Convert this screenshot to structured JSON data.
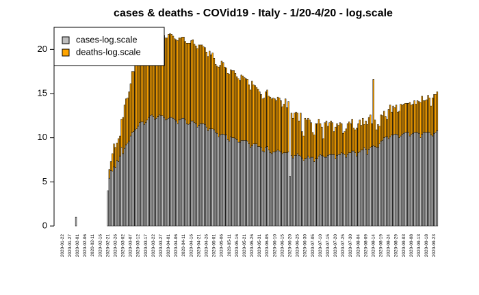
{
  "chart_data": {
    "type": "stacked-bar",
    "title": "cases & deaths - COVid19 - Italy - 1/20-4/20 - log.scale",
    "categories": [
      "2020-01-22",
      null,
      null,
      null,
      null,
      "2020-01-27",
      null,
      null,
      null,
      null,
      "2020-02-01",
      null,
      null,
      null,
      null,
      "2020-02-06",
      null,
      null,
      null,
      null,
      "2020-02-11",
      null,
      null,
      null,
      null,
      "2020-02-16",
      null,
      null,
      null,
      null,
      "2020-02-21",
      null,
      null,
      null,
      null,
      "2020-02-26",
      null,
      null,
      null,
      null,
      "2020-03-02",
      null,
      null,
      null,
      null,
      "2020-03-07",
      null,
      null,
      null,
      null,
      "2020-03-12",
      null,
      null,
      null,
      null,
      "2020-03-17",
      null,
      null,
      null,
      null,
      "2020-03-22",
      null,
      null,
      null,
      null,
      "2020-03-27",
      null,
      null,
      null,
      null,
      "2020-04-01",
      null,
      null,
      null,
      null,
      "2020-04-06",
      null,
      null,
      null,
      null,
      "2020-04-11",
      null,
      null,
      null,
      null,
      "2020-04-16",
      null,
      null,
      null,
      null,
      "2020-04-21",
      null,
      null,
      null,
      null,
      "2020-04-26",
      null,
      null,
      null,
      null,
      "2020-05-01",
      null,
      null,
      null,
      null,
      "2020-05-06",
      null,
      null,
      null,
      null,
      "2020-05-11",
      null,
      null,
      null,
      null,
      "2020-05-16",
      null,
      null,
      null,
      null,
      "2020-05-21",
      null,
      null,
      null,
      null,
      "2020-05-26",
      null,
      null,
      null,
      null,
      "2020-05-31",
      null,
      null,
      null,
      null,
      "2020-06-05",
      null,
      null,
      null,
      null,
      "2020-06-10",
      null,
      null,
      null,
      null,
      "2020-06-15",
      null,
      null,
      null,
      null,
      "2020-06-20",
      null,
      null,
      null,
      null,
      "2020-06-25",
      null,
      null,
      null,
      null,
      "2020-06-30",
      null,
      null,
      null,
      null,
      "2020-07-05",
      null,
      null,
      null,
      null,
      "2020-07-10",
      null,
      null,
      null,
      null,
      "2020-07-15",
      null,
      null,
      null,
      null,
      "2020-07-20",
      null,
      null,
      null,
      null,
      "2020-07-25",
      null,
      null,
      null,
      null,
      "2020-07-30",
      null,
      null,
      null,
      null,
      "2020-08-04",
      null,
      null,
      null,
      null,
      "2020-08-09",
      null,
      null,
      null,
      null,
      "2020-08-14",
      null,
      null,
      null,
      null,
      "2020-08-19",
      null,
      null,
      null,
      null,
      "2020-08-24",
      null,
      null,
      null,
      null,
      "2020-08-29",
      null,
      null,
      null,
      null,
      "2020-09-03",
      null,
      null,
      null,
      null,
      "2020-09-08",
      null,
      null,
      null,
      null,
      "2020-09-13",
      null,
      null,
      null,
      null,
      "2020-09-18",
      null,
      null,
      null,
      null,
      "2020-09-23",
      null,
      null
    ],
    "series": [
      {
        "name": "cases-log.scale",
        "color": "#bebebe",
        "values": [
          0,
          0,
          0,
          0,
          0,
          0,
          0,
          0,
          0,
          1,
          0,
          0,
          0,
          0,
          0,
          0,
          0,
          0,
          0,
          0,
          0,
          0,
          0,
          0,
          0,
          0,
          0,
          0,
          0,
          0,
          4.0,
          5.4,
          6.3,
          6.2,
          6.7,
          6.6,
          7.4,
          7.3,
          7.9,
          8.9,
          8.2,
          8.8,
          9.2,
          9.4,
          9.6,
          10.2,
          10.6,
          10.7,
          10.9,
          11.0,
          11.3,
          11.7,
          11.8,
          11.8,
          11.5,
          11.7,
          12.0,
          12.3,
          12.5,
          12.6,
          12.4,
          12.1,
          12.2,
          12.4,
          12.6,
          12.5,
          12.5,
          12.3,
          12.0,
          12.1,
          12.2,
          12.3,
          12.3,
          12.2,
          12.1,
          11.9,
          11.6,
          12.0,
          12.1,
          12.2,
          12.2,
          12.0,
          11.6,
          11.5,
          11.6,
          11.9,
          11.9,
          11.7,
          11.6,
          11.2,
          11.4,
          11.6,
          11.6,
          11.6,
          11.5,
          11.2,
          10.8,
          11.0,
          11.0,
          11.0,
          10.9,
          10.6,
          10.5,
          10.1,
          10.3,
          10.4,
          10.4,
          10.3,
          10.3,
          9.8,
          9.6,
          10.1,
          10.0,
          10.0,
          9.9,
          9.8,
          9.5,
          9.5,
          9.7,
          9.7,
          9.7,
          9.7,
          9.6,
          9.3,
          8.9,
          9.1,
          9.3,
          9.3,
          9.3,
          9.0,
          9.0,
          8.9,
          8.5,
          8.4,
          8.9,
          9.0,
          8.6,
          8.3,
          8.2,
          8.4,
          8.4,
          8.5,
          8.6,
          8.5,
          8.4,
          8.2,
          8.3,
          8.3,
          8.3,
          8.4,
          5.6,
          8.0,
          7.7,
          8.0,
          8.0,
          8.2,
          8.0,
          7.9,
          7.7,
          7.4,
          7.6,
          7.7,
          7.9,
          7.7,
          7.8,
          7.8,
          7.3,
          7.6,
          7.6,
          7.9,
          8.1,
          8.0,
          7.9,
          7.8,
          7.8,
          8.0,
          8.1,
          8.1,
          8.1,
          8.1,
          7.6,
          8.0,
          8.1,
          8.1,
          8.3,
          8.2,
          8.1,
          7.8,
          8.1,
          8.3,
          8.3,
          8.5,
          8.5,
          8.3,
          7.9,
          8.3,
          8.4,
          8.6,
          8.6,
          8.9,
          8.7,
          8.1,
          8.7,
          8.9,
          9.0,
          9.1,
          9.0,
          8.9,
          8.9,
          9.3,
          9.6,
          9.7,
          10.0,
          10.1,
          10.1,
          9.9,
          10.1,
          10.3,
          10.3,
          10.4,
          10.4,
          10.3,
          10.0,
          10.2,
          10.4,
          10.5,
          10.6,
          10.6,
          10.6,
          10.2,
          10.4,
          10.5,
          10.6,
          10.6,
          10.6,
          10.5,
          10.0,
          10.4,
          10.6,
          10.6,
          10.6,
          10.6,
          10.6,
          10.3,
          10.2,
          10.5,
          10.6,
          10.8
        ]
      },
      {
        "name": "deaths-log.scale",
        "color": "#ffa500",
        "values": [
          0,
          0,
          0,
          0,
          0,
          0,
          0,
          0,
          0,
          0,
          0,
          0,
          0,
          0,
          0,
          0,
          0,
          0,
          0,
          0,
          0,
          0,
          0,
          0,
          0,
          0,
          0,
          0,
          0,
          0,
          0,
          1,
          1,
          2,
          2.6,
          2.3,
          2,
          2.6,
          2.3,
          3.2,
          4.1,
          4.9,
          5.2,
          5.1,
          5.6,
          5.9,
          6.9,
          6.8,
          7.4,
          7.6,
          7.9,
          7.8,
          8.2,
          8.3,
          8.5,
          8.7,
          8.9,
          9.1,
          9.3,
          9.6,
          9.3,
          9.2,
          9.4,
          9.6,
          9.6,
          9.8,
          9.6,
          9.3,
          9.3,
          9.2,
          9.5,
          9.5,
          9.4,
          9.3,
          9.1,
          9.2,
          9.4,
          9.3,
          9.2,
          9.2,
          9.2,
          8.9,
          9.1,
          9.2,
          9.1,
          9.1,
          9.2,
          8.9,
          8.8,
          8.9,
          9.1,
          8.9,
          8.9,
          8.7,
          8.7,
          8.5,
          8.4,
          8.8,
          8.4,
          8.6,
          8.1,
          7.7,
          7.6,
          7.9,
          7.9,
          8.3,
          8.1,
          7.7,
          7.6,
          7.5,
          7.6,
          7.6,
          7.6,
          7.6,
          7.4,
          7.1,
          7.2,
          7.0,
          7.4,
          7.3,
          7.1,
          7.0,
          7.0,
          6.7,
          6.5,
          7.3,
          6.7,
          6.6,
          6.4,
          6.5,
          6.2,
          6.0,
          5.9,
          6.1,
          6.3,
          6.4,
          6.1,
          6.3,
          6.2,
          6.1,
          6.0,
          5.7,
          6.0,
          6.0,
          5.8,
          5.3,
          5.5,
          6.1,
          5.1,
          5.7,
          0,
          4.8,
          4.5,
          4.8,
          4.9,
          4.6,
          3.9,
          4.9,
          3.0,
          2.8,
          4.6,
          4.3,
          4.3,
          4.3,
          3.9,
          2.8,
          3.0,
          4.0,
          4.0,
          4.2,
          3.5,
          3.2,
          2.0,
          3.9,
          4.1,
          3.3,
          3.6,
          3.8,
          3.6,
          2.6,
          3.6,
          3.6,
          3.3,
          3.6,
          3.3,
          2.3,
          2.6,
          3.2,
          3.5,
          3.5,
          3.3,
          3.6,
          2.6,
          2.6,
          3.2,
          3.3,
          3.6,
          2.8,
          3.6,
          2.6,
          3.2,
          3.4,
          3.6,
          3.7,
          2.6,
          7.5,
          3.0,
          2.0,
          2.6,
          2.0,
          3.0,
          2.8,
          3.0,
          2.3,
          2.0,
          3.3,
          3.6,
          2.6,
          3.3,
          3.0,
          3.3,
          2.6,
          3.0,
          3.6,
          3.3,
          3.3,
          3.3,
          3.3,
          3.3,
          3.8,
          3.3,
          3.3,
          3.6,
          3.2,
          3.6,
          3.6,
          4.0,
          4.3,
          3.6,
          3.6,
          3.7,
          4.2,
          3.9,
          3.3,
          4.3,
          4.4,
          4.3,
          4.4
        ]
      }
    ],
    "ylim": [
      0,
      22.5
    ],
    "yticks": [
      0,
      5,
      10,
      15,
      20
    ],
    "legend": "topleft"
  }
}
